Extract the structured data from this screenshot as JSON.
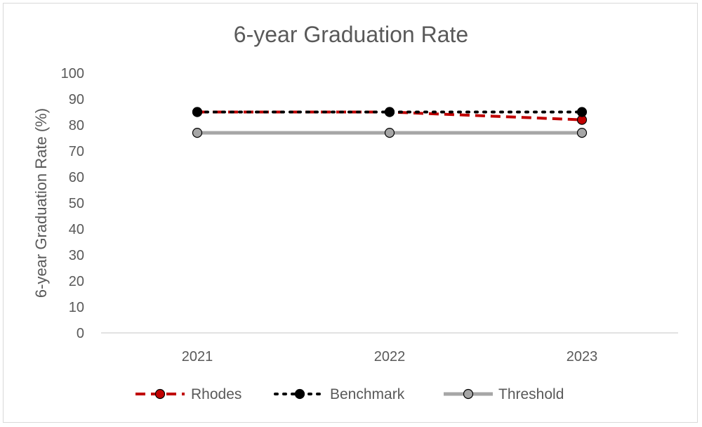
{
  "chart_data": {
    "type": "line",
    "title": "6-year Graduation Rate",
    "xlabel": "",
    "ylabel": "6-year Graduation Rate (%)",
    "categories": [
      "2021",
      "2022",
      "2023"
    ],
    "ylim": [
      0,
      100
    ],
    "yticks": [
      0,
      10,
      20,
      30,
      40,
      50,
      60,
      70,
      80,
      90,
      100
    ],
    "grid": false,
    "legend_position": "bottom",
    "series": [
      {
        "name": "Rhodes",
        "values": [
          85,
          85,
          82
        ],
        "color": "#c00000",
        "line_style": "dashed",
        "marker_fill": "#c00000",
        "marker_edge": "#000000"
      },
      {
        "name": "Benchmark",
        "values": [
          85,
          85,
          85
        ],
        "color": "#000000",
        "line_style": "dotted",
        "marker_fill": "#000000",
        "marker_edge": "#000000"
      },
      {
        "name": "Threshold",
        "values": [
          77,
          77,
          77
        ],
        "color": "#a6a6a6",
        "line_style": "solid",
        "marker_fill": "#a6a6a6",
        "marker_edge": "#000000"
      }
    ]
  }
}
